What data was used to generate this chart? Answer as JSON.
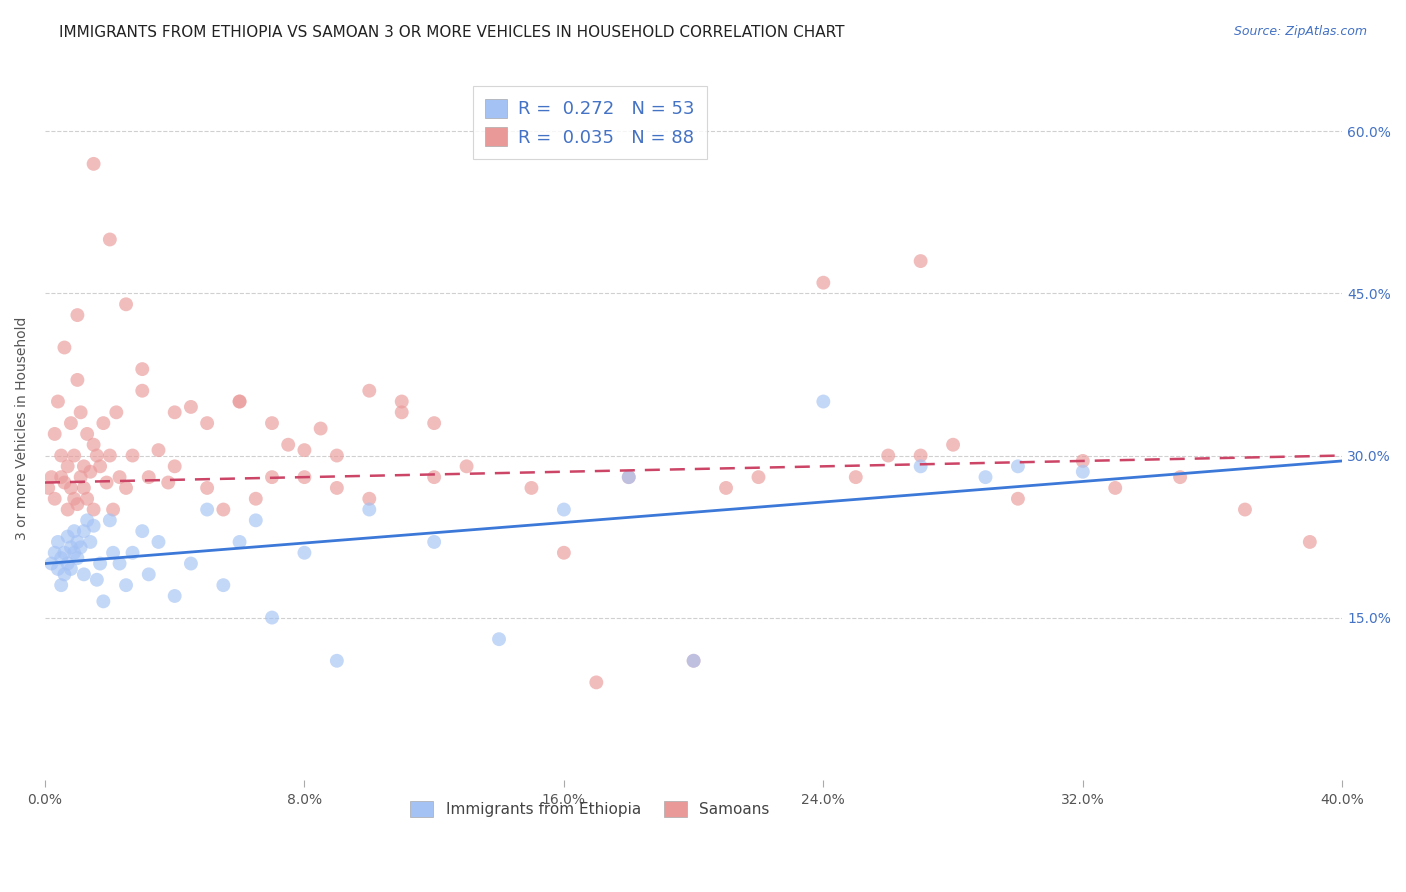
{
  "title": "IMMIGRANTS FROM ETHIOPIA VS SAMOAN 3 OR MORE VEHICLES IN HOUSEHOLD CORRELATION CHART",
  "source": "Source: ZipAtlas.com",
  "ylabel": "3 or more Vehicles in Household",
  "xlim": [
    0.0,
    40.0
  ],
  "ylim": [
    0.0,
    65.0
  ],
  "ytick_vals": [
    15.0,
    30.0,
    45.0,
    60.0
  ],
  "blue_color": "#a4c2f4",
  "pink_color": "#ea9999",
  "blue_line_color": "#3c78d8",
  "pink_line_color": "#cc4466",
  "blue_line_start_y": 20.0,
  "blue_line_end_y": 29.5,
  "pink_line_start_y": 27.5,
  "pink_line_end_y": 30.0,
  "R_blue": 0.272,
  "N_blue": 53,
  "R_pink": 0.035,
  "N_pink": 88,
  "title_fontsize": 11,
  "source_fontsize": 9,
  "axis_label_fontsize": 10,
  "tick_fontsize": 10,
  "legend_fontsize": 13,
  "background_color": "#ffffff",
  "grid_color": "#d0d0d0",
  "legend_top_labels": [
    "R =  0.272   N = 53",
    "R =  0.035   N = 88"
  ],
  "legend_bottom_labels": [
    "Immigrants from Ethiopia",
    "Samoans"
  ],
  "blue_x": [
    0.2,
    0.3,
    0.4,
    0.4,
    0.5,
    0.5,
    0.6,
    0.6,
    0.7,
    0.7,
    0.8,
    0.8,
    0.9,
    0.9,
    1.0,
    1.0,
    1.1,
    1.2,
    1.2,
    1.3,
    1.4,
    1.5,
    1.6,
    1.7,
    1.8,
    2.0,
    2.1,
    2.3,
    2.5,
    2.7,
    3.0,
    3.2,
    3.5,
    4.0,
    4.5,
    5.0,
    5.5,
    6.0,
    6.5,
    7.0,
    8.0,
    9.0,
    10.0,
    12.0,
    14.0,
    16.0,
    18.0,
    20.0,
    24.0,
    27.0,
    29.0,
    30.0,
    32.0
  ],
  "blue_y": [
    20.0,
    21.0,
    19.5,
    22.0,
    20.5,
    18.0,
    21.0,
    19.0,
    22.5,
    20.0,
    21.5,
    19.5,
    23.0,
    21.0,
    22.0,
    20.5,
    21.5,
    23.0,
    19.0,
    24.0,
    22.0,
    23.5,
    18.5,
    20.0,
    16.5,
    24.0,
    21.0,
    20.0,
    18.0,
    21.0,
    23.0,
    19.0,
    22.0,
    17.0,
    20.0,
    25.0,
    18.0,
    22.0,
    24.0,
    15.0,
    21.0,
    11.0,
    25.0,
    22.0,
    13.0,
    25.0,
    28.0,
    11.0,
    35.0,
    29.0,
    28.0,
    29.0,
    28.5
  ],
  "pink_x": [
    0.1,
    0.2,
    0.3,
    0.3,
    0.4,
    0.5,
    0.5,
    0.6,
    0.6,
    0.7,
    0.7,
    0.8,
    0.8,
    0.9,
    0.9,
    1.0,
    1.0,
    1.1,
    1.1,
    1.2,
    1.2,
    1.3,
    1.3,
    1.4,
    1.5,
    1.5,
    1.6,
    1.7,
    1.8,
    1.9,
    2.0,
    2.1,
    2.2,
    2.3,
    2.5,
    2.7,
    3.0,
    3.2,
    3.5,
    3.8,
    4.0,
    4.5,
    5.0,
    5.5,
    6.0,
    6.5,
    7.0,
    7.5,
    8.0,
    8.5,
    9.0,
    10.0,
    11.0,
    12.0,
    13.0,
    15.0,
    16.0,
    17.0,
    18.0,
    20.0,
    21.0,
    22.0,
    24.0,
    25.0,
    27.0,
    30.0,
    32.0,
    33.0,
    35.0,
    37.0,
    39.0,
    1.0,
    1.5,
    2.0,
    2.5,
    3.0,
    4.0,
    5.0,
    6.0,
    7.0,
    8.0,
    9.0,
    10.0,
    11.0,
    12.0,
    26.0,
    27.0,
    28.0
  ],
  "pink_y": [
    27.0,
    28.0,
    32.0,
    26.0,
    35.0,
    30.0,
    28.0,
    27.5,
    40.0,
    25.0,
    29.0,
    33.0,
    27.0,
    26.0,
    30.0,
    37.0,
    25.5,
    28.0,
    34.0,
    27.0,
    29.0,
    32.0,
    26.0,
    28.5,
    31.0,
    25.0,
    30.0,
    29.0,
    33.0,
    27.5,
    30.0,
    25.0,
    34.0,
    28.0,
    27.0,
    30.0,
    36.0,
    28.0,
    30.5,
    27.5,
    29.0,
    34.5,
    27.0,
    25.0,
    35.0,
    26.0,
    28.0,
    31.0,
    28.0,
    32.5,
    27.0,
    26.0,
    34.0,
    28.0,
    29.0,
    27.0,
    21.0,
    9.0,
    28.0,
    11.0,
    27.0,
    28.0,
    46.0,
    28.0,
    48.0,
    26.0,
    29.5,
    27.0,
    28.0,
    25.0,
    22.0,
    43.0,
    57.0,
    50.0,
    44.0,
    38.0,
    34.0,
    33.0,
    35.0,
    33.0,
    30.5,
    30.0,
    36.0,
    35.0,
    33.0,
    30.0,
    30.0,
    31.0
  ]
}
